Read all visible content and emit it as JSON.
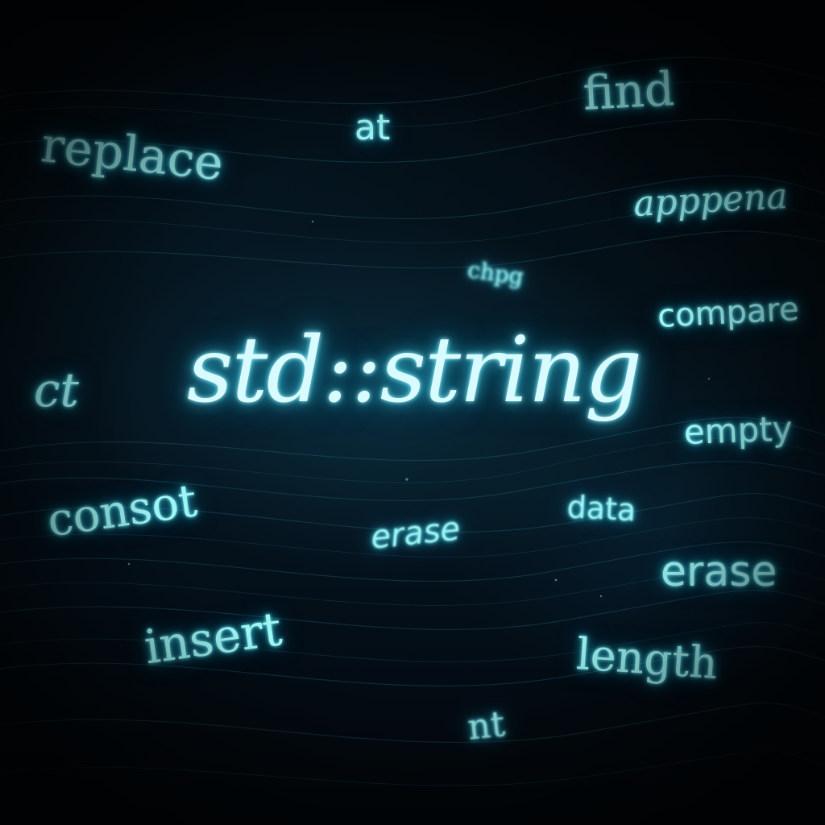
{
  "title": "std::string",
  "words": {
    "replace": "replace",
    "at": "at",
    "find": "find",
    "appena": "apppena",
    "chpg": "chpg",
    "compare": "compare",
    "ct": "ct",
    "empty": "empty",
    "data": "data",
    "consot": "consot",
    "erase_center": "erase",
    "erase_right": "erase",
    "insert": "insert",
    "length": "length",
    "nt": "nt"
  },
  "colors": {
    "glow": "#9ff4f4",
    "title": "#d8fbff",
    "background": "#03090e"
  }
}
